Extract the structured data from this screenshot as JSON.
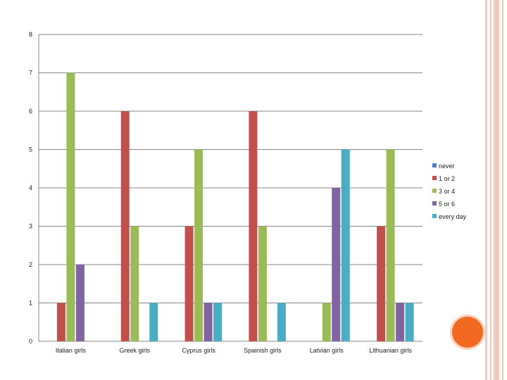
{
  "chart_data": {
    "type": "bar",
    "title": "",
    "xlabel": "",
    "ylabel": "",
    "ylim": [
      0,
      8
    ],
    "yticks": [
      "0",
      "1",
      "2",
      "3",
      "4",
      "5",
      "6",
      "7",
      "8"
    ],
    "grid": true,
    "legend_position": "right",
    "categories": [
      "Italian girls",
      "Greek girls",
      "Cyprus girls",
      "Spainish girls",
      "Latvian girls",
      "Lithuanian girls"
    ],
    "series": [
      {
        "name": "never",
        "color": "#4f81bd",
        "values": [
          0,
          0,
          0,
          0,
          0,
          0
        ]
      },
      {
        "name": "1 or 2",
        "color": "#c0504d",
        "values": [
          1,
          6,
          3,
          6,
          0,
          3
        ]
      },
      {
        "name": "3 or 4",
        "color": "#9bbb59",
        "values": [
          7,
          3,
          5,
          3,
          1,
          5
        ]
      },
      {
        "name": "5 or 6",
        "color": "#8064a2",
        "values": [
          2,
          0,
          1,
          0,
          4,
          1
        ]
      },
      {
        "name": "every day",
        "color": "#4bacc6",
        "values": [
          0,
          1,
          1,
          1,
          5,
          1
        ]
      }
    ]
  },
  "decoration": {
    "accent_circle_color": "#f26a21",
    "border_line_color": "#f4c7b6"
  }
}
